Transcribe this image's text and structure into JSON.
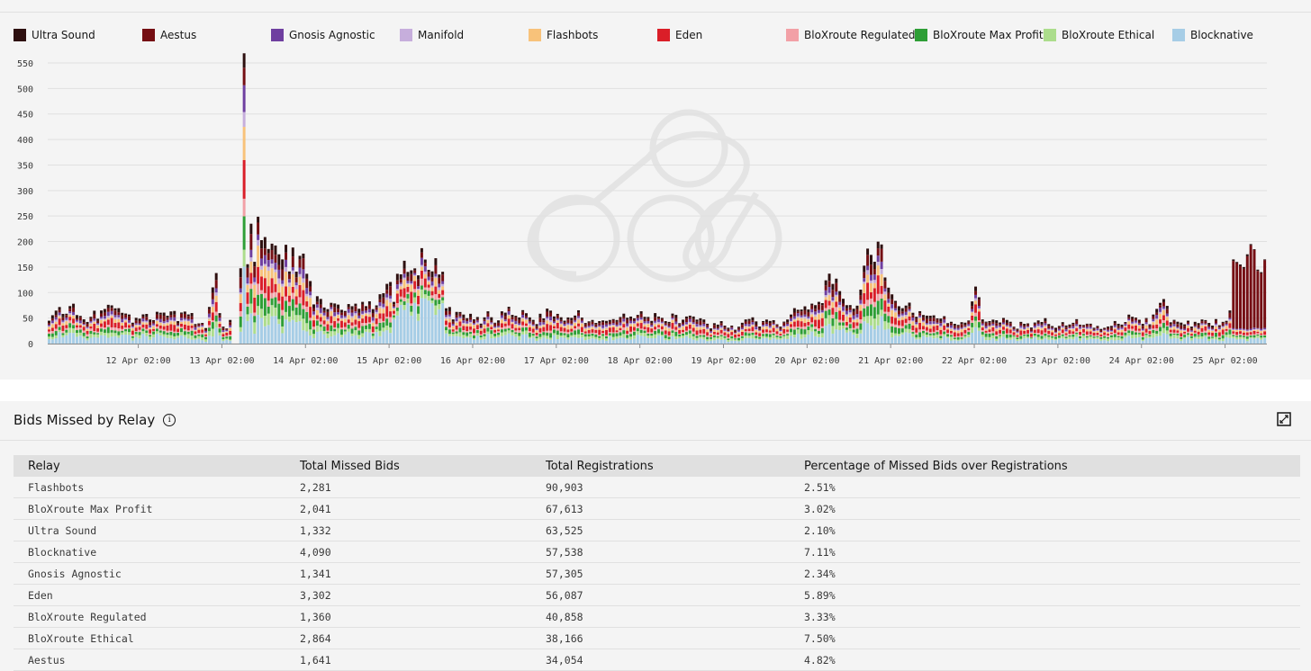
{
  "legend": [
    {
      "name": "Ultra Sound",
      "color": "#2d0f0f"
    },
    {
      "name": "Aestus",
      "color": "#750e13"
    },
    {
      "name": "Gnosis Agnostic",
      "color": "#6f3fa0"
    },
    {
      "name": "Manifold",
      "color": "#c6aedc"
    },
    {
      "name": "Flashbots",
      "color": "#f8c27a"
    },
    {
      "name": "Eden",
      "color": "#da1e28"
    },
    {
      "name": "BloXroute Regulated",
      "color": "#f2a0a6"
    },
    {
      "name": "BloXroute Max Profit",
      "color": "#2e9e36"
    },
    {
      "name": "BloXroute Ethical",
      "color": "#acdd8c"
    },
    {
      "name": "Blocknative",
      "color": "#a6cde6"
    }
  ],
  "chart_data": {
    "type": "bar",
    "stacked": true,
    "ylim": [
      0,
      550
    ],
    "yticks": [
      0,
      50,
      100,
      150,
      200,
      250,
      300,
      350,
      400,
      450,
      500,
      550
    ],
    "grid": true,
    "legend_position": "top",
    "xticks": [
      {
        "t": 26,
        "label": "12 Apr 02:00"
      },
      {
        "t": 50,
        "label": "13 Apr 02:00"
      },
      {
        "t": 74,
        "label": "14 Apr 02:00"
      },
      {
        "t": 98,
        "label": "15 Apr 02:00"
      },
      {
        "t": 122,
        "label": "16 Apr 02:00"
      },
      {
        "t": 146,
        "label": "17 Apr 02:00"
      },
      {
        "t": 170,
        "label": "18 Apr 02:00"
      },
      {
        "t": 194,
        "label": "19 Apr 02:00"
      },
      {
        "t": 218,
        "label": "20 Apr 02:00"
      },
      {
        "t": 242,
        "label": "21 Apr 02:00"
      },
      {
        "t": 266,
        "label": "22 Apr 02:00"
      },
      {
        "t": 290,
        "label": "23 Apr 02:00"
      },
      {
        "t": 314,
        "label": "24 Apr 02:00"
      },
      {
        "t": 338,
        "label": "25 Apr 02:00"
      }
    ],
    "total_hours": 350,
    "keyframes": [
      [
        0,
        45
      ],
      [
        3,
        60
      ],
      [
        6,
        75
      ],
      [
        9,
        55
      ],
      [
        12,
        50
      ],
      [
        15,
        65
      ],
      [
        18,
        70
      ],
      [
        21,
        55
      ],
      [
        24,
        45
      ],
      [
        27,
        50
      ],
      [
        30,
        55
      ],
      [
        33,
        60
      ],
      [
        35,
        70
      ],
      [
        37,
        45
      ],
      [
        39,
        65
      ],
      [
        41,
        55
      ],
      [
        43,
        40
      ],
      [
        45,
        35
      ],
      [
        47,
        120
      ],
      [
        48,
        140
      ],
      [
        49,
        60
      ],
      [
        50,
        40
      ],
      [
        51,
        30
      ],
      [
        52,
        45
      ],
      [
        53,
        20
      ],
      [
        54,
        60
      ],
      [
        55,
        140
      ],
      [
        56,
        508
      ],
      [
        57,
        180
      ],
      [
        58,
        230
      ],
      [
        59,
        200
      ],
      [
        60,
        220
      ],
      [
        61,
        210
      ],
      [
        62,
        195
      ],
      [
        63,
        215
      ],
      [
        64,
        175
      ],
      [
        65,
        200
      ],
      [
        66,
        160
      ],
      [
        67,
        180
      ],
      [
        68,
        175
      ],
      [
        69,
        165
      ],
      [
        70,
        190
      ],
      [
        71,
        150
      ],
      [
        72,
        145
      ],
      [
        73,
        150
      ],
      [
        74,
        125
      ],
      [
        75,
        110
      ],
      [
        76,
        85
      ],
      [
        78,
        100
      ],
      [
        80,
        75
      ],
      [
        82,
        70
      ],
      [
        84,
        80
      ],
      [
        86,
        65
      ],
      [
        88,
        70
      ],
      [
        90,
        90
      ],
      [
        92,
        80
      ],
      [
        94,
        65
      ],
      [
        96,
        100
      ],
      [
        97,
        115
      ],
      [
        98,
        110
      ],
      [
        99,
        90
      ],
      [
        100,
        125
      ],
      [
        101,
        130
      ],
      [
        102,
        175
      ],
      [
        104,
        170
      ],
      [
        106,
        165
      ],
      [
        108,
        165
      ],
      [
        110,
        150
      ],
      [
        111,
        150
      ],
      [
        112,
        140
      ],
      [
        113,
        155
      ],
      [
        114,
        65
      ],
      [
        116,
        55
      ],
      [
        118,
        60
      ],
      [
        120,
        50
      ],
      [
        122,
        55
      ],
      [
        124,
        45
      ],
      [
        126,
        60
      ],
      [
        128,
        50
      ],
      [
        130,
        55
      ],
      [
        132,
        65
      ],
      [
        134,
        55
      ],
      [
        136,
        70
      ],
      [
        138,
        50
      ],
      [
        140,
        45
      ],
      [
        142,
        55
      ],
      [
        144,
        60
      ],
      [
        146,
        55
      ],
      [
        148,
        50
      ],
      [
        150,
        45
      ],
      [
        152,
        60
      ],
      [
        154,
        50
      ],
      [
        156,
        45
      ],
      [
        158,
        55
      ],
      [
        160,
        50
      ],
      [
        162,
        45
      ],
      [
        164,
        60
      ],
      [
        166,
        50
      ],
      [
        168,
        45
      ],
      [
        170,
        55
      ],
      [
        172,
        50
      ],
      [
        174,
        60
      ],
      [
        176,
        45
      ],
      [
        178,
        50
      ],
      [
        180,
        55
      ],
      [
        182,
        45
      ],
      [
        184,
        50
      ],
      [
        186,
        45
      ],
      [
        188,
        40
      ],
      [
        190,
        35
      ],
      [
        192,
        40
      ],
      [
        194,
        35
      ],
      [
        196,
        30
      ],
      [
        198,
        35
      ],
      [
        200,
        40
      ],
      [
        202,
        45
      ],
      [
        204,
        35
      ],
      [
        206,
        40
      ],
      [
        208,
        45
      ],
      [
        210,
        40
      ],
      [
        212,
        55
      ],
      [
        214,
        65
      ],
      [
        216,
        80
      ],
      [
        218,
        75
      ],
      [
        220,
        65
      ],
      [
        222,
        95
      ],
      [
        224,
        120
      ],
      [
        226,
        110
      ],
      [
        228,
        80
      ],
      [
        230,
        70
      ],
      [
        232,
        80
      ],
      [
        234,
        140
      ],
      [
        235,
        160
      ],
      [
        236,
        180
      ],
      [
        237,
        150
      ],
      [
        238,
        175
      ],
      [
        239,
        210
      ],
      [
        240,
        120
      ],
      [
        241,
        100
      ],
      [
        242,
        90
      ],
      [
        244,
        85
      ],
      [
        246,
        80
      ],
      [
        248,
        70
      ],
      [
        250,
        55
      ],
      [
        252,
        60
      ],
      [
        254,
        55
      ],
      [
        256,
        45
      ],
      [
        258,
        45
      ],
      [
        260,
        40
      ],
      [
        262,
        45
      ],
      [
        264,
        40
      ],
      [
        266,
        110
      ],
      [
        268,
        50
      ],
      [
        270,
        40
      ],
      [
        272,
        45
      ],
      [
        274,
        50
      ],
      [
        276,
        40
      ],
      [
        278,
        35
      ],
      [
        280,
        40
      ],
      [
        282,
        35
      ],
      [
        284,
        40
      ],
      [
        286,
        45
      ],
      [
        288,
        40
      ],
      [
        290,
        35
      ],
      [
        292,
        40
      ],
      [
        294,
        50
      ],
      [
        296,
        35
      ],
      [
        298,
        40
      ],
      [
        300,
        30
      ],
      [
        302,
        35
      ],
      [
        304,
        40
      ],
      [
        306,
        45
      ],
      [
        308,
        40
      ],
      [
        310,
        50
      ],
      [
        312,
        55
      ],
      [
        314,
        45
      ],
      [
        316,
        40
      ],
      [
        318,
        60
      ],
      [
        320,
        100
      ],
      [
        322,
        45
      ],
      [
        324,
        40
      ],
      [
        326,
        45
      ],
      [
        328,
        35
      ],
      [
        330,
        40
      ],
      [
        332,
        45
      ],
      [
        334,
        40
      ],
      [
        336,
        45
      ],
      [
        338,
        50
      ],
      [
        340,
        60
      ],
      [
        342,
        45
      ],
      [
        344,
        40
      ],
      [
        346,
        35
      ],
      [
        348,
        30
      ],
      [
        350,
        30
      ]
    ],
    "gaps": [
      [
        53,
        55
      ]
    ],
    "late_spike": {
      "from": 340,
      "to": 350,
      "series": "Aestus",
      "values": [
        130,
        125,
        120,
        115,
        140,
        160,
        150,
        110,
        105,
        130
      ]
    }
  },
  "table": {
    "title": "Bids Missed by Relay",
    "columns": [
      "Relay",
      "Total Missed Bids",
      "Total Registrations",
      "Percentage of Missed Bids over Registrations"
    ],
    "rows": [
      [
        "Flashbots",
        "2,281",
        "90,903",
        "2.51%"
      ],
      [
        "BloXroute Max Profit",
        "2,041",
        "67,613",
        "3.02%"
      ],
      [
        "Ultra Sound",
        "1,332",
        "63,525",
        "2.10%"
      ],
      [
        "Blocknative",
        "4,090",
        "57,538",
        "7.11%"
      ],
      [
        "Gnosis Agnostic",
        "1,341",
        "57,305",
        "2.34%"
      ],
      [
        "Eden",
        "3,302",
        "56,087",
        "5.89%"
      ],
      [
        "BloXroute Regulated",
        "1,360",
        "40,858",
        "3.33%"
      ],
      [
        "BloXroute Ethical",
        "2,864",
        "38,166",
        "7.50%"
      ],
      [
        "Aestus",
        "1,641",
        "34,054",
        "4.82%"
      ]
    ]
  }
}
